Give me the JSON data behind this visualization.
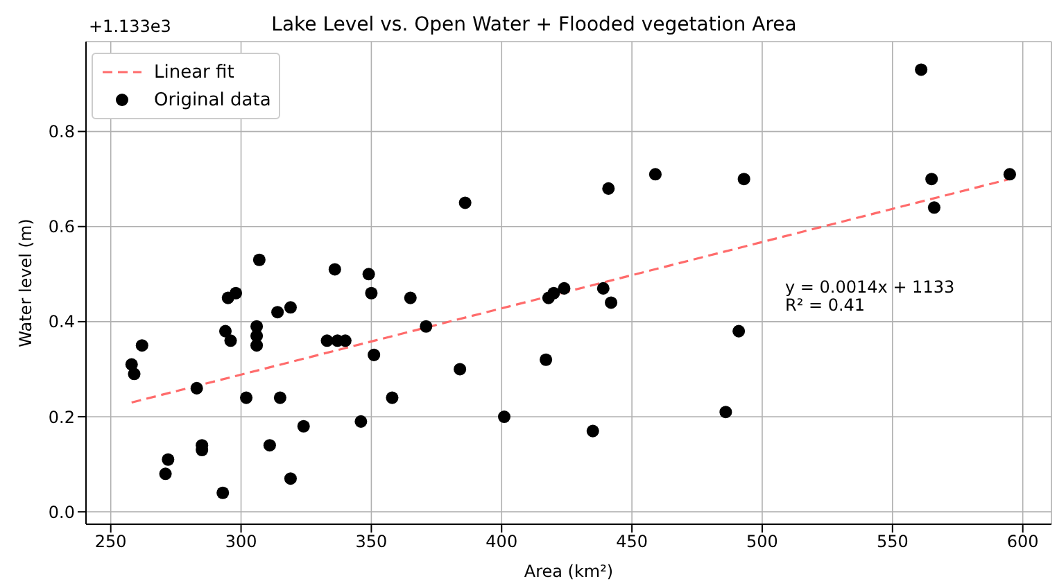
{
  "chart_data": {
    "type": "scatter",
    "title": "Lake Level vs. Open Water + Flooded vegetation Area",
    "xlabel": "Area (km²)",
    "ylabel": "Water level (m)",
    "annotations": [
      "+1.133e3",
      "y = 0.0014x + 1133",
      "R² = 0.41"
    ],
    "xlim": [
      240.5,
      611
    ],
    "xticks": [
      250,
      300,
      350,
      400,
      450,
      500,
      550,
      600
    ],
    "ylim": [
      -0.026,
      0.989
    ],
    "yticks": [
      {
        "value": 0,
        "label": "0.0"
      },
      0.2,
      0.4,
      0.6,
      0.8
    ],
    "grid": true,
    "legend": "top left",
    "series": [
      {
        "name": "Linear fit",
        "type": "line",
        "color": "#ff6b6b",
        "line_style": "dashed",
        "marker": "none",
        "x": [
          258,
          595
        ],
        "values": [
          0.23,
          0.7
        ]
      },
      {
        "name": "Original data",
        "type": "scatter",
        "color": "#000000",
        "marker": "circle",
        "x": [
          258,
          259,
          262,
          283,
          271,
          272,
          285,
          285,
          293,
          294,
          295,
          296,
          298,
          302,
          306,
          306,
          306,
          307,
          311,
          314,
          315,
          319,
          319,
          324,
          333,
          336,
          337,
          340,
          346,
          349,
          350,
          351,
          358,
          365,
          371,
          384,
          386,
          401,
          417,
          418,
          420,
          424,
          435,
          439,
          441,
          442,
          459,
          486,
          491,
          493,
          561,
          565,
          566,
          595
        ],
        "values": [
          0.31,
          0.29,
          0.35,
          0.26,
          0.08,
          0.11,
          0.14,
          0.13,
          0.04,
          0.38,
          0.45,
          0.36,
          0.46,
          0.24,
          0.35,
          0.37,
          0.39,
          0.53,
          0.14,
          0.42,
          0.24,
          0.07,
          0.43,
          0.18,
          0.36,
          0.51,
          0.36,
          0.36,
          0.19,
          0.5,
          0.46,
          0.33,
          0.24,
          0.45,
          0.39,
          0.3,
          0.65,
          0.2,
          0.32,
          0.45,
          0.46,
          0.47,
          0.17,
          0.47,
          0.68,
          0.44,
          0.71,
          0.21,
          0.38,
          0.7,
          0.93,
          0.7,
          0.64,
          0.71
        ]
      }
    ]
  }
}
